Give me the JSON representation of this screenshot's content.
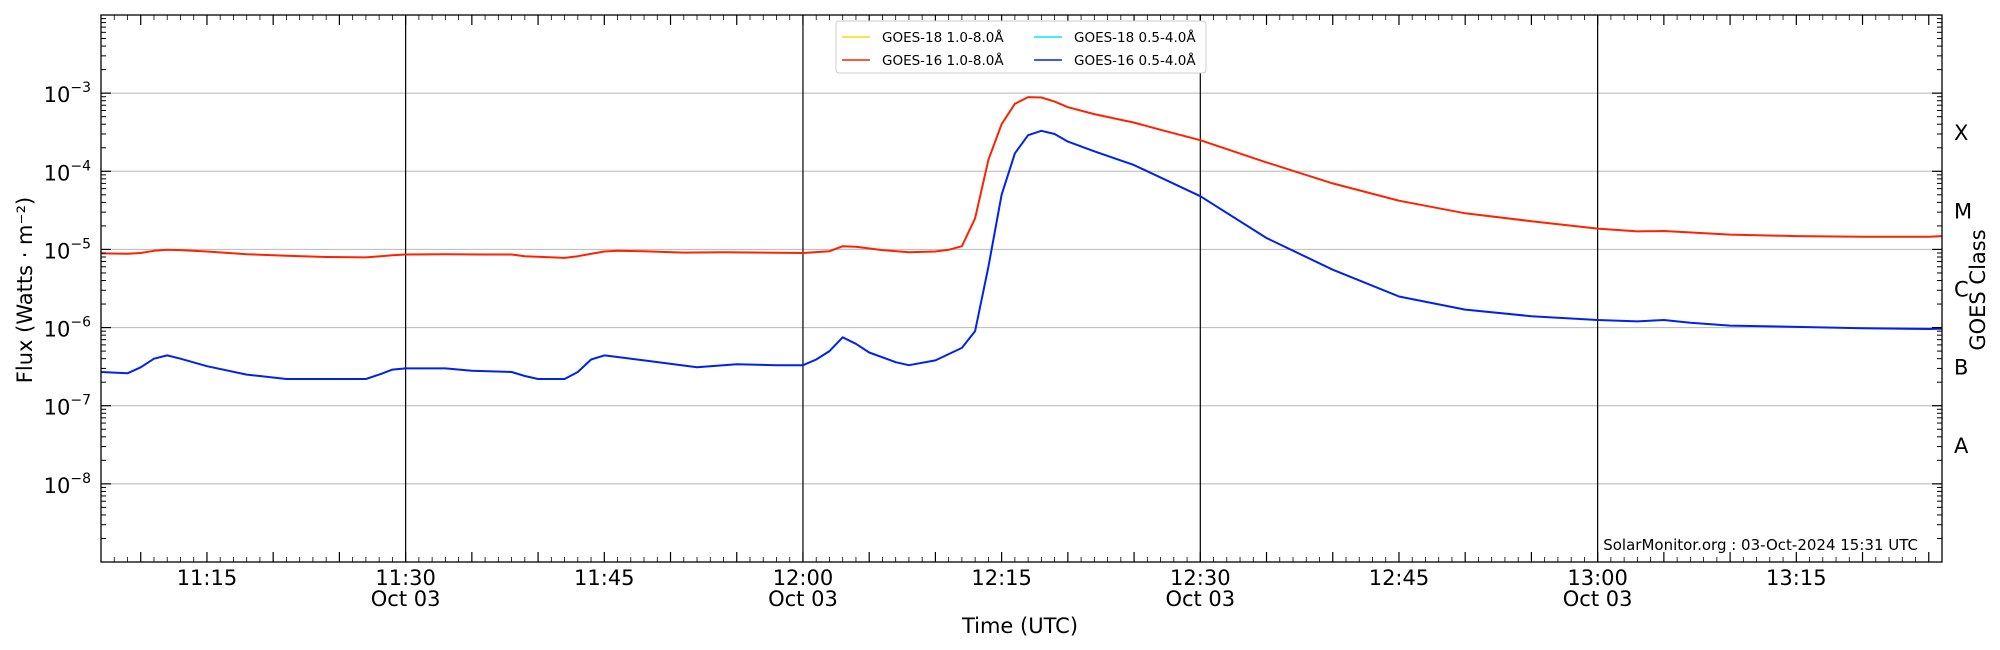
{
  "chart_data": {
    "type": "line",
    "title": "",
    "xlabel": "Time (UTC)",
    "ylabel": "Flux (Watts · m⁻²)",
    "y2label": "GOES Class",
    "yscale": "log",
    "xlim": [
      "11:07",
      "13:26"
    ],
    "ylim": [
      1e-09,
      0.01
    ],
    "grid": {
      "horizontal": true,
      "vertical_lines_at": [
        "11:30",
        "12:00",
        "12:30",
        "13:00"
      ]
    },
    "legend_position": "top-center",
    "credit": "SolarMonitor.org : 03-Oct-2024 15:31 UTC",
    "x_ticks": [
      {
        "t": "11:15",
        "label": "11:15",
        "sub": ""
      },
      {
        "t": "11:30",
        "label": "11:30",
        "sub": "Oct 03"
      },
      {
        "t": "11:45",
        "label": "11:45",
        "sub": ""
      },
      {
        "t": "12:00",
        "label": "12:00",
        "sub": "Oct 03"
      },
      {
        "t": "12:15",
        "label": "12:15",
        "sub": ""
      },
      {
        "t": "12:30",
        "label": "12:30",
        "sub": "Oct 03"
      },
      {
        "t": "12:45",
        "label": "12:45",
        "sub": ""
      },
      {
        "t": "13:00",
        "label": "13:00",
        "sub": "Oct 03"
      },
      {
        "t": "13:15",
        "label": "13:15",
        "sub": ""
      }
    ],
    "y_ticks": [
      {
        "v": 1e-08,
        "base": "10",
        "exp": "−8"
      },
      {
        "v": 1e-07,
        "base": "10",
        "exp": "−7"
      },
      {
        "v": 1e-06,
        "base": "10",
        "exp": "−6"
      },
      {
        "v": 1e-05,
        "base": "10",
        "exp": "−5"
      },
      {
        "v": 0.0001,
        "base": "10",
        "exp": "−4"
      },
      {
        "v": 0.001,
        "base": "10",
        "exp": "−3"
      }
    ],
    "goes_classes": [
      {
        "label": "A",
        "v": 3.16e-08
      },
      {
        "label": "B",
        "v": 3.16e-07
      },
      {
        "label": "C",
        "v": 3.16e-06
      },
      {
        "label": "M",
        "v": 3.16e-05
      },
      {
        "label": "X",
        "v": 0.000316
      }
    ],
    "series": [
      {
        "name": "GOES-18 1.0-8.0Å",
        "color": "#ffd700",
        "x": [],
        "values": []
      },
      {
        "name": "GOES-18 0.5-4.0Å",
        "color": "#00e5ff",
        "x": [],
        "values": []
      },
      {
        "name": "GOES-16 1.0-8.0Å",
        "color": "#ff2200",
        "x": [
          "11:07",
          "11:09",
          "11:10",
          "11:11",
          "11:12",
          "11:13",
          "11:15",
          "11:18",
          "11:21",
          "11:24",
          "11:27",
          "11:29",
          "11:30",
          "11:33",
          "11:36",
          "11:38",
          "11:39",
          "11:42",
          "11:43",
          "11:45",
          "11:46",
          "11:48",
          "11:51",
          "11:54",
          "11:57",
          "12:00",
          "12:02",
          "12:03",
          "12:04",
          "12:06",
          "12:08",
          "12:10",
          "12:11",
          "12:12",
          "12:13",
          "12:14",
          "12:15",
          "12:16",
          "12:17",
          "12:18",
          "12:19",
          "12:20",
          "12:22",
          "12:25",
          "12:27",
          "12:30",
          "12:35",
          "12:40",
          "12:45",
          "12:50",
          "12:55",
          "13:00",
          "13:03",
          "13:05",
          "13:10",
          "13:15",
          "13:20",
          "13:25",
          "13:26"
        ],
        "values": [
          8.9e-06,
          8.8e-06,
          9e-06,
          9.6e-06,
          9.9e-06,
          9.8e-06,
          9.4e-06,
          8.7e-06,
          8.3e-06,
          8e-06,
          7.9e-06,
          8.4e-06,
          8.6e-06,
          8.7e-06,
          8.6e-06,
          8.6e-06,
          8.2e-06,
          7.8e-06,
          8.2e-06,
          9.4e-06,
          9.6e-06,
          9.5e-06,
          9.1e-06,
          9.2e-06,
          9.1e-06,
          9e-06,
          9.5e-06,
          1.1e-05,
          1.08e-05,
          9.8e-06,
          9.2e-06,
          9.4e-06,
          9.9e-06,
          1.1e-05,
          2.5e-05,
          0.00014,
          0.0004,
          0.00073,
          0.00089,
          0.00088,
          0.00078,
          0.00066,
          0.00054,
          0.00042,
          0.00034,
          0.00025,
          0.00013,
          7e-05,
          4.2e-05,
          2.9e-05,
          2.3e-05,
          1.85e-05,
          1.7e-05,
          1.72e-05,
          1.55e-05,
          1.48e-05,
          1.45e-05,
          1.45e-05,
          1.48e-05
        ]
      },
      {
        "name": "GOES-16 0.5-4.0Å",
        "color": "#0022ee",
        "x": [
          "11:07",
          "11:09",
          "11:10",
          "11:11",
          "11:12",
          "11:13",
          "11:15",
          "11:18",
          "11:21",
          "11:24",
          "11:27",
          "11:28",
          "11:29",
          "11:30",
          "11:33",
          "11:35",
          "11:38",
          "11:39",
          "11:40",
          "11:42",
          "11:43",
          "11:44",
          "11:45",
          "11:46",
          "11:48",
          "11:52",
          "11:55",
          "11:58",
          "12:00",
          "12:01",
          "12:02",
          "12:03",
          "12:04",
          "12:05",
          "12:07",
          "12:08",
          "12:10",
          "12:12",
          "12:13",
          "12:14",
          "12:15",
          "12:16",
          "12:17",
          "12:18",
          "12:19",
          "12:20",
          "12:22",
          "12:25",
          "12:30",
          "12:35",
          "12:40",
          "12:45",
          "12:50",
          "12:55",
          "13:00",
          "13:03",
          "13:05",
          "13:07",
          "13:10",
          "13:15",
          "13:20",
          "13:25",
          "13:26"
        ],
        "values": [
          2.7e-07,
          2.6e-07,
          3.1e-07,
          4e-07,
          4.4e-07,
          4e-07,
          3.2e-07,
          2.5e-07,
          2.2e-07,
          2.2e-07,
          2.2e-07,
          2.5e-07,
          2.9e-07,
          3e-07,
          3e-07,
          2.8e-07,
          2.7e-07,
          2.4e-07,
          2.2e-07,
          2.2e-07,
          2.7e-07,
          3.9e-07,
          4.4e-07,
          4.2e-07,
          3.8e-07,
          3.1e-07,
          3.4e-07,
          3.3e-07,
          3.3e-07,
          3.9e-07,
          5e-07,
          7.5e-07,
          6.2e-07,
          4.8e-07,
          3.6e-07,
          3.3e-07,
          3.8e-07,
          5.5e-07,
          9e-07,
          6e-06,
          5e-05,
          0.00017,
          0.00029,
          0.00033,
          0.0003,
          0.00024,
          0.00018,
          0.00012,
          4.8e-05,
          1.4e-05,
          5.5e-06,
          2.5e-06,
          1.7e-06,
          1.4e-06,
          1.25e-06,
          1.2e-06,
          1.25e-06,
          1.15e-06,
          1.06e-06,
          1.02e-06,
          9.8e-07,
          9.6e-07,
          9.7e-07
        ]
      }
    ]
  }
}
